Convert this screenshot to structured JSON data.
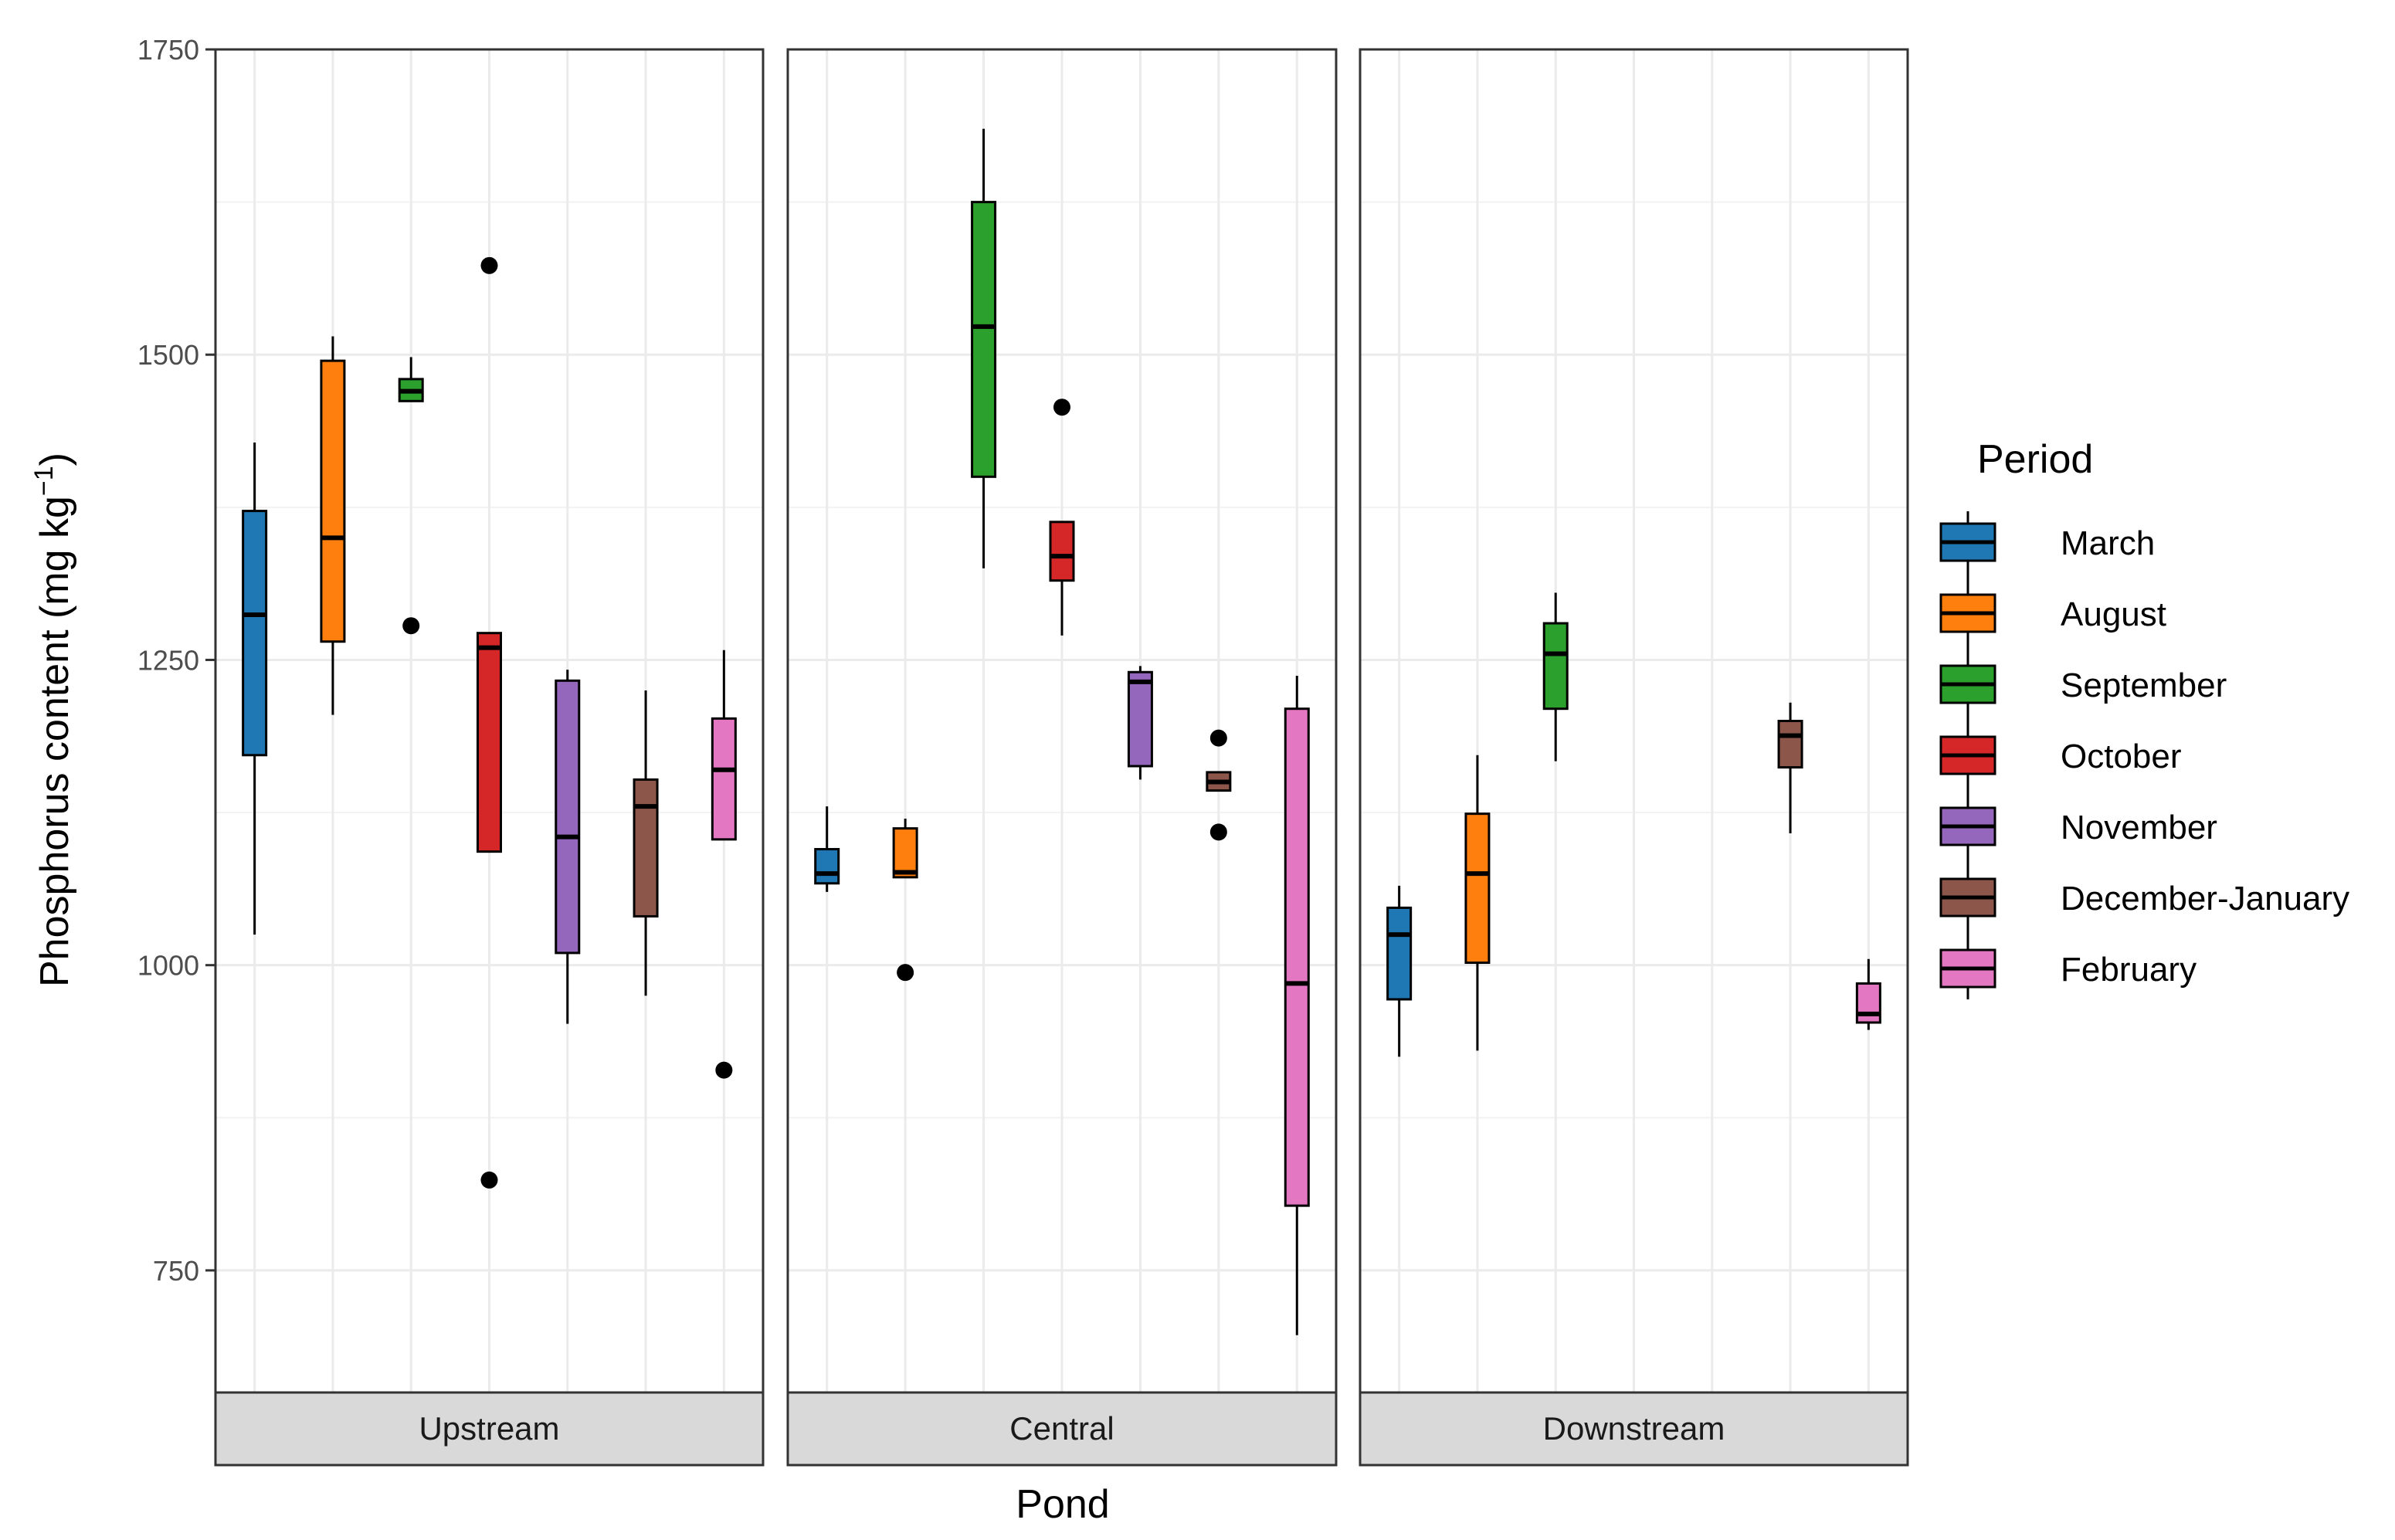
{
  "chart_data": {
    "type": "box",
    "xlabel": "Pond",
    "ylabel": "Phosphorus content (mg kg",
    "ylabel_superscript": "−1",
    "ylabel_close": ")",
    "ylim": [
      650,
      1750
    ],
    "yticks": [
      750,
      1000,
      1250,
      1500,
      1750
    ],
    "grid": true,
    "legend": {
      "title": "Period",
      "position": "right"
    },
    "periods": [
      {
        "name": "March",
        "color": "#1f77b4"
      },
      {
        "name": "August",
        "color": "#ff7f0e"
      },
      {
        "name": "September",
        "color": "#2ca02c"
      },
      {
        "name": "October",
        "color": "#d62728"
      },
      {
        "name": "November",
        "color": "#9467bd"
      },
      {
        "name": "December-January",
        "color": "#8c564b"
      },
      {
        "name": "February",
        "color": "#e377c2"
      }
    ],
    "panels": [
      {
        "label": "Upstream",
        "boxes": [
          {
            "period": "March",
            "min": 1025,
            "q1": 1172,
            "median": 1287,
            "q3": 1372,
            "max": 1428,
            "outliers": []
          },
          {
            "period": "August",
            "min": 1205,
            "q1": 1265,
            "median": 1350,
            "q3": 1495,
            "max": 1515,
            "outliers": []
          },
          {
            "period": "September",
            "min": 1462,
            "q1": 1462,
            "median": 1470,
            "q3": 1480,
            "max": 1498,
            "outliers": [
              1278
            ]
          },
          {
            "period": "October",
            "min": 1093,
            "q1": 1093,
            "median": 1260,
            "q3": 1272,
            "max": 1272,
            "outliers": [
              1573,
              824
            ]
          },
          {
            "period": "November",
            "min": 952,
            "q1": 1010,
            "median": 1105,
            "q3": 1233,
            "max": 1242,
            "outliers": []
          },
          {
            "period": "December-January",
            "min": 975,
            "q1": 1040,
            "median": 1130,
            "q3": 1152,
            "max": 1225,
            "outliers": []
          },
          {
            "period": "February",
            "min": 1103,
            "q1": 1103,
            "median": 1160,
            "q3": 1202,
            "max": 1258,
            "outliers": [
              914
            ]
          }
        ]
      },
      {
        "label": "Central",
        "boxes": [
          {
            "period": "March",
            "min": 1060,
            "q1": 1067,
            "median": 1075,
            "q3": 1095,
            "max": 1130,
            "outliers": []
          },
          {
            "period": "August",
            "min": 1072,
            "q1": 1072,
            "median": 1076,
            "q3": 1112,
            "max": 1120,
            "outliers": [
              994
            ]
          },
          {
            "period": "September",
            "min": 1325,
            "q1": 1400,
            "median": 1523,
            "q3": 1625,
            "max": 1685,
            "outliers": []
          },
          {
            "period": "October",
            "min": 1270,
            "q1": 1315,
            "median": 1335,
            "q3": 1363,
            "max": 1363,
            "outliers": [
              1457
            ]
          },
          {
            "period": "November",
            "min": 1152,
            "q1": 1163,
            "median": 1232,
            "q3": 1240,
            "max": 1245,
            "outliers": []
          },
          {
            "period": "December-January",
            "min": 1143,
            "q1": 1143,
            "median": 1150,
            "q3": 1158,
            "max": 1158,
            "outliers": [
              1186,
              1109
            ]
          },
          {
            "period": "February",
            "min": 697,
            "q1": 803,
            "median": 985,
            "q3": 1210,
            "max": 1237,
            "outliers": []
          }
        ]
      },
      {
        "label": "Downstream",
        "boxes": [
          {
            "period": "March",
            "min": 925,
            "q1": 972,
            "median": 1025,
            "q3": 1047,
            "max": 1065,
            "outliers": []
          },
          {
            "period": "August",
            "min": 930,
            "q1": 1002,
            "median": 1075,
            "q3": 1124,
            "max": 1172,
            "outliers": []
          },
          {
            "period": "September",
            "min": 1167,
            "q1": 1210,
            "median": 1255,
            "q3": 1280,
            "max": 1305,
            "outliers": []
          },
          {
            "period": "October",
            "min": null,
            "q1": null,
            "median": null,
            "q3": null,
            "max": null,
            "outliers": []
          },
          {
            "period": "November",
            "min": null,
            "q1": null,
            "median": null,
            "q3": null,
            "max": null,
            "outliers": []
          },
          {
            "period": "December-January",
            "min": 1108,
            "q1": 1162,
            "median": 1188,
            "q3": 1200,
            "max": 1215,
            "outliers": []
          },
          {
            "period": "February",
            "min": 947,
            "q1": 953,
            "median": 960,
            "q3": 985,
            "max": 1005,
            "outliers": []
          }
        ]
      }
    ]
  }
}
